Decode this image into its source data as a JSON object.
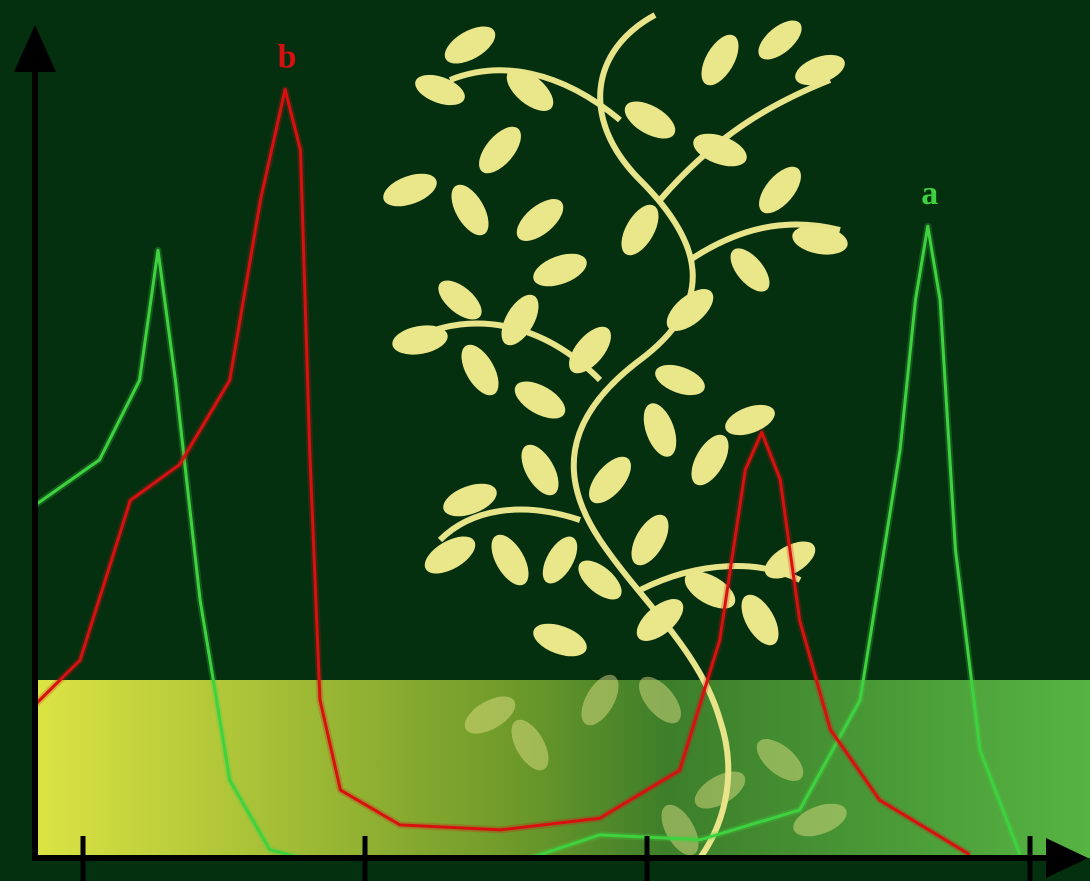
{
  "chart_data": {
    "type": "line",
    "xlim": [
      0,
      100
    ],
    "ylim": [
      0,
      100
    ],
    "series": [
      {
        "name": "a",
        "color": "#3fd23f",
        "x": [
          0,
          6.3,
          10.2,
          12.0,
          13.7,
          16.1,
          19.0,
          22.9,
          25.9,
          40,
          48.3,
          55.1,
          64.9,
          74.6,
          80.5,
          84.4,
          85.9,
          87.1,
          88.3,
          89.8,
          92.2,
          96.1
        ],
        "values": [
          42.6,
          48.1,
          57.7,
          73.4,
          57.7,
          31.2,
          9.4,
          1.0,
          0,
          null,
          0,
          2.8,
          2.2,
          5.8,
          19.1,
          49.3,
          67.4,
          76.3,
          67.4,
          37.2,
          13.0,
          0.4
        ]
      },
      {
        "name": "b",
        "color": "#d81010",
        "x": [
          0,
          4.4,
          9.3,
          14.1,
          19.0,
          22.0,
          24.4,
          25.9,
          26.8,
          27.8,
          29.8,
          35.6,
          45.4,
          55.1,
          62.9,
          66.8,
          69.3,
          70.9,
          72.7,
          74.6,
          77.6,
          82.4,
          91.2
        ],
        "values": [
          18.5,
          23.9,
          43.2,
          47.5,
          57.7,
          79.5,
          92.8,
          85.5,
          49.3,
          19.1,
          8.2,
          4.0,
          3.4,
          4.8,
          10.6,
          26.3,
          46.9,
          51.4,
          45.7,
          28.7,
          15.5,
          7.0,
          0.4
        ]
      }
    ]
  }
}
